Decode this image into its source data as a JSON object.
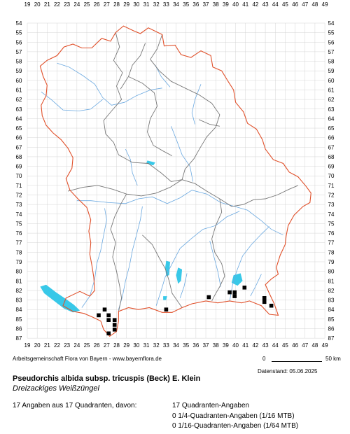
{
  "map": {
    "col_labels": [
      "19",
      "20",
      "21",
      "22",
      "23",
      "24",
      "25",
      "26",
      "27",
      "28",
      "29",
      "30",
      "31",
      "32",
      "33",
      "34",
      "35",
      "36",
      "37",
      "38",
      "39",
      "40",
      "41",
      "42",
      "43",
      "44",
      "45",
      "46",
      "47",
      "48",
      "49"
    ],
    "row_labels": [
      "54",
      "55",
      "56",
      "57",
      "58",
      "59",
      "60",
      "61",
      "62",
      "63",
      "64",
      "65",
      "66",
      "67",
      "68",
      "69",
      "70",
      "71",
      "72",
      "73",
      "74",
      "75",
      "76",
      "77",
      "78",
      "79",
      "80",
      "81",
      "82",
      "83",
      "84",
      "85",
      "86",
      "87"
    ],
    "colors": {
      "border": "#e0502a",
      "districts": "#777777",
      "rivers": "#6aa8e0",
      "lakes": "#38c8e8",
      "grid": "#d4d4d4",
      "dots": "#000000"
    },
    "occurrences": [
      [
        26.8,
        84.0
      ],
      [
        33.0,
        84.0
      ],
      [
        37.3,
        82.7
      ],
      [
        39.4,
        82.2
      ],
      [
        39.9,
        82.2
      ],
      [
        39.9,
        82.6
      ],
      [
        40.9,
        81.7
      ],
      [
        42.9,
        82.8
      ],
      [
        42.9,
        83.2
      ],
      [
        43.6,
        83.6
      ],
      [
        26.2,
        84.6
      ],
      [
        27.2,
        84.6
      ],
      [
        27.2,
        85.1
      ],
      [
        27.8,
        85.1
      ],
      [
        27.8,
        85.6
      ],
      [
        27.8,
        86.1
      ],
      [
        27.2,
        86.5
      ]
    ]
  },
  "credit": "Arbeitsgemeinschaft Flora von Bayern - www.bayernflora.de",
  "scale": {
    "zero": "0",
    "end": "50 km"
  },
  "date": "Datenstand: 05.06.2025",
  "species": {
    "scientific": "Pseudorchis albida subsp. tricuspis (Beck) E. Klein",
    "common": "Dreizackiges Weißzüngel"
  },
  "stats": {
    "total": "17 Angaben aus 17 Quadranten, davon:",
    "line1": "17 Quadranten-Angaben",
    "line2": "0 1/4-Quadranten-Angaben (1/16 MTB)",
    "line3": "0 1/16-Quadranten-Angaben (1/64 MTB)"
  }
}
